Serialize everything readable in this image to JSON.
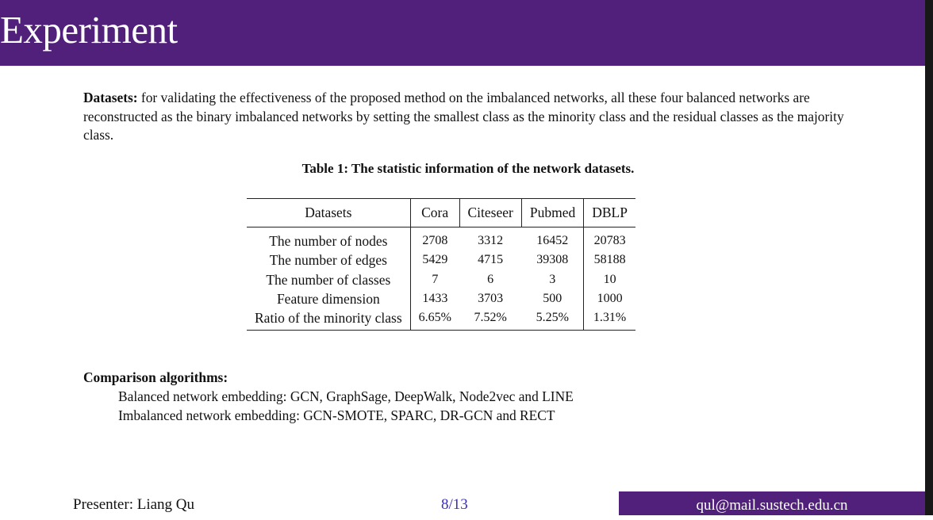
{
  "slide": {
    "title": "Experiment",
    "colors": {
      "title_bar": "#51207a",
      "page_number": "#3a2dbb"
    }
  },
  "datasets_paragraph": {
    "label": "Datasets:",
    "text": " for validating the effectiveness of the proposed method on the imbalanced networks, all these four balanced networks are reconstructed as the binary imbalanced networks by setting the smallest class as the minority class and the residual classes as the majority class."
  },
  "table": {
    "caption": "Table 1: The statistic information of the network datasets.",
    "headers": [
      "Datasets",
      "Cora",
      "Citeseer",
      "Pubmed",
      "DBLP"
    ],
    "rows": [
      [
        "The number of nodes",
        "2708",
        "3312",
        "16452",
        "20783"
      ],
      [
        "The number of edges",
        "5429",
        "4715",
        "39308",
        "58188"
      ],
      [
        "The number of classes",
        "7",
        "6",
        "3",
        "10"
      ],
      [
        "Feature dimension",
        "1433",
        "3703",
        "500",
        "1000"
      ],
      [
        "Ratio of the minority class",
        "6.65%",
        "7.52%",
        "5.25%",
        "1.31%"
      ]
    ]
  },
  "comparison": {
    "heading": "Comparison algorithms:",
    "balanced": "Balanced network embedding: GCN, GraphSage, DeepWalk, Node2vec and LINE",
    "imbalanced": "Imbalanced network embedding: GCN-SMOTE, SPARC, DR-GCN and RECT"
  },
  "footer": {
    "presenter": "Presenter: Liang Qu",
    "page": "8/13",
    "email": "qul@mail.sustech.edu.cn"
  }
}
